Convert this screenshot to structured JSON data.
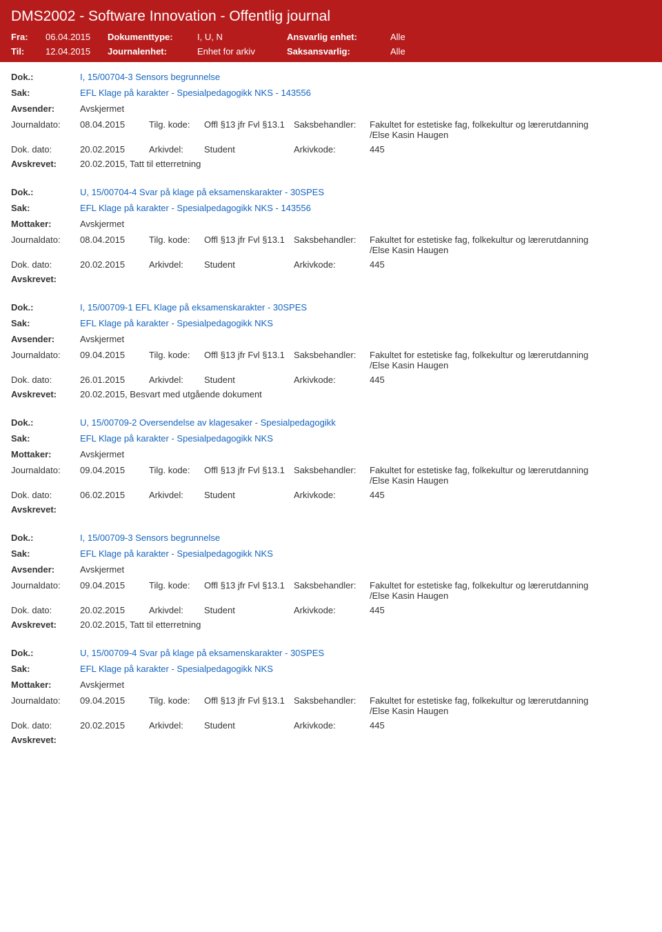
{
  "header": {
    "title": "DMS2002 - Software Innovation - Offentlig journal",
    "fra_label": "Fra:",
    "fra_value": "06.04.2015",
    "til_label": "Til:",
    "til_value": "12.04.2015",
    "doktype_label": "Dokumenttype:",
    "doktype_value": "I, U, N",
    "journalenhet_label": "Journalenhet:",
    "journalenhet_value": "Enhet for arkiv",
    "ansvarlig_label": "Ansvarlig enhet:",
    "ansvarlig_value": "Alle",
    "saksansvarlig_label": "Saksansvarlig:",
    "saksansvarlig_value": "Alle"
  },
  "labels": {
    "dok": "Dok.:",
    "sak": "Sak:",
    "avsender": "Avsender:",
    "mottaker": "Mottaker:",
    "journaldato": "Journaldato:",
    "tilgkode": "Tilg. kode:",
    "saksbehandler": "Saksbehandler:",
    "dokdato": "Dok. dato:",
    "arkivdel": "Arkivdel:",
    "arkivkode": "Arkivkode:",
    "avskrevet": "Avskrevet:"
  },
  "common": {
    "avskjermet": "Avskjermet",
    "tilgkode_val": "Offl §13 jfr Fvl §13.1",
    "saksbeh_line1": "Fakultet for estetiske fag, folkekultur og lærerutdanning",
    "saksbeh_line2": "/Else Kasin Haugen",
    "arkivdel_val": "Student",
    "arkivkode_val": "445"
  },
  "entries": [
    {
      "dok": "I, 15/00704-3 Sensors begrunnelse",
      "sak": "EFL Klage på karakter - Spesialpedagogikk NKS - 143556",
      "party_label": "Avsender:",
      "journaldato": "08.04.2015",
      "dokdato": "20.02.2015",
      "avskrevet": "20.02.2015, Tatt til etterretning"
    },
    {
      "dok": "U, 15/00704-4 Svar på klage på eksamenskarakter - 30SPES",
      "sak": "EFL Klage på karakter - Spesialpedagogikk NKS - 143556",
      "party_label": "Mottaker:",
      "journaldato": "08.04.2015",
      "dokdato": "20.02.2015",
      "avskrevet": ""
    },
    {
      "dok": "I, 15/00709-1 EFL Klage på eksamenskarakter - 30SPES",
      "sak": "EFL Klage på karakter - Spesialpedagogikk NKS",
      "party_label": "Avsender:",
      "journaldato": "09.04.2015",
      "dokdato": "26.01.2015",
      "avskrevet": "20.02.2015, Besvart med utgående dokument"
    },
    {
      "dok": "U, 15/00709-2 Oversendelse av klagesaker - Spesialpedagogikk",
      "sak": "EFL Klage på karakter - Spesialpedagogikk NKS",
      "party_label": "Mottaker:",
      "journaldato": "09.04.2015",
      "dokdato": "06.02.2015",
      "avskrevet": ""
    },
    {
      "dok": "I, 15/00709-3 Sensors begrunnelse",
      "sak": "EFL Klage på karakter - Spesialpedagogikk NKS",
      "party_label": "Avsender:",
      "journaldato": "09.04.2015",
      "dokdato": "20.02.2015",
      "avskrevet": "20.02.2015, Tatt til etterretning"
    },
    {
      "dok": "U, 15/00709-4 Svar på klage på eksamenskarakter - 30SPES",
      "sak": "EFL Klage på karakter - Spesialpedagogikk NKS",
      "party_label": "Mottaker:",
      "journaldato": "09.04.2015",
      "dokdato": "20.02.2015",
      "avskrevet": ""
    }
  ]
}
